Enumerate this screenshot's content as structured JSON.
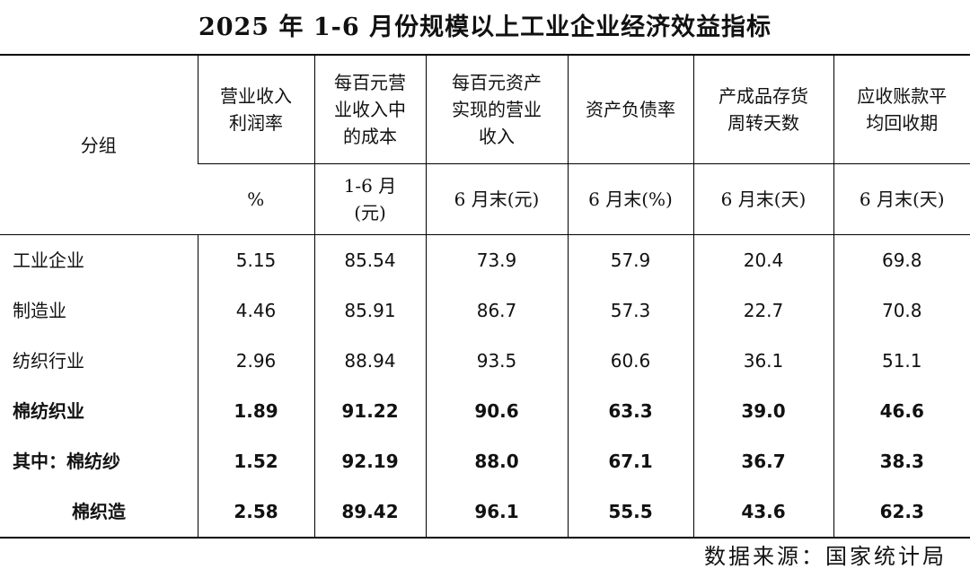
{
  "title": "2025 年 1-6 月份规模以上工业企业经济效益指标",
  "table": {
    "group_header": "分组",
    "columns": [
      {
        "name": "营业收入利润率",
        "unit": "%"
      },
      {
        "name": "每百元营业收入中的成本",
        "unit": "1-6 月(元)"
      },
      {
        "name": "每百元资产实现的营业收入",
        "unit": "6 月末(元)"
      },
      {
        "name": "资产负债率",
        "unit": "6 月末(%)"
      },
      {
        "name": "产成品存货周转天数",
        "unit": "6 月末(天)"
      },
      {
        "name": "应收账款平均回收期",
        "unit": "6 月末(天)"
      }
    ],
    "rows": [
      {
        "label": "工业企业",
        "bold": false,
        "values": [
          "5.15",
          "85.54",
          "73.9",
          "57.9",
          "20.4",
          "69.8"
        ]
      },
      {
        "label": "制造业",
        "bold": false,
        "values": [
          "4.46",
          "85.91",
          "86.7",
          "57.3",
          "22.7",
          "70.8"
        ]
      },
      {
        "label": "纺织行业",
        "bold": false,
        "values": [
          "2.96",
          "88.94",
          "93.5",
          "60.6",
          "36.1",
          "51.1"
        ]
      },
      {
        "label": "棉纺织业",
        "bold": true,
        "values": [
          "1.89",
          "91.22",
          "90.6",
          "63.3",
          "39.0",
          "46.6"
        ]
      },
      {
        "label": "其中：棉纺纱",
        "bold": true,
        "values": [
          "1.52",
          "92.19",
          "88.0",
          "67.1",
          "36.7",
          "38.3"
        ]
      },
      {
        "label": "棉织造",
        "bold": true,
        "values": [
          "2.58",
          "89.42",
          "96.1",
          "55.5",
          "43.6",
          "62.3"
        ]
      }
    ]
  },
  "source": "数据来源：国家统计局"
}
